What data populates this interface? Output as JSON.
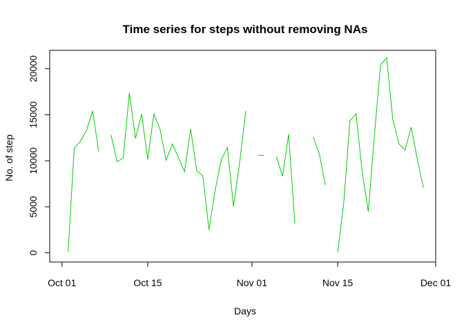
{
  "chart_data": {
    "type": "line",
    "title": "Time series for steps without removing NAs",
    "xlabel": "Days",
    "ylabel": "No. of step",
    "x_ticks": [
      "2012-10-01",
      "2012-10-15",
      "2012-11-01",
      "2012-11-15",
      "2012-12-01"
    ],
    "x_tick_labels": [
      "Oct 01",
      "Oct 15",
      "Nov 01",
      "Nov 15",
      "Dec 01"
    ],
    "y_ticks": [
      0,
      5000,
      10000,
      15000,
      20000
    ],
    "y_tick_labels": [
      "0",
      "5000",
      "10000",
      "15000",
      "20000"
    ],
    "xlim": [
      "2012-09-29",
      "2012-12-01"
    ],
    "ylim": [
      -1000,
      22000
    ],
    "grid": false,
    "legend": "none",
    "series": [
      {
        "color": "#00CD00",
        "x": [
          "2012-10-01",
          "2012-10-02",
          "2012-10-03",
          "2012-10-04",
          "2012-10-05",
          "2012-10-06",
          "2012-10-07",
          "2012-10-08",
          "2012-10-09",
          "2012-10-10",
          "2012-10-11",
          "2012-10-12",
          "2012-10-13",
          "2012-10-14",
          "2012-10-15",
          "2012-10-16",
          "2012-10-17",
          "2012-10-18",
          "2012-10-19",
          "2012-10-20",
          "2012-10-21",
          "2012-10-22",
          "2012-10-23",
          "2012-10-24",
          "2012-10-25",
          "2012-10-26",
          "2012-10-27",
          "2012-10-28",
          "2012-10-29",
          "2012-10-30",
          "2012-10-31",
          "2012-11-01",
          "2012-11-02",
          "2012-11-03",
          "2012-11-04",
          "2012-11-05",
          "2012-11-06",
          "2012-11-07",
          "2012-11-08",
          "2012-11-09",
          "2012-11-10",
          "2012-11-11",
          "2012-11-12",
          "2012-11-13",
          "2012-11-14",
          "2012-11-15",
          "2012-11-16",
          "2012-11-17",
          "2012-11-18",
          "2012-11-19",
          "2012-11-20",
          "2012-11-21",
          "2012-11-22",
          "2012-11-23",
          "2012-11-24",
          "2012-11-25",
          "2012-11-26",
          "2012-11-27",
          "2012-11-28",
          "2012-11-29",
          "2012-11-30"
        ],
        "y": [
          null,
          126,
          11352,
          12116,
          13294,
          15420,
          11015,
          null,
          12811,
          9900,
          10304,
          17382,
          12426,
          15098,
          10139,
          15084,
          13452,
          10056,
          11829,
          10395,
          8821,
          13460,
          8918,
          8355,
          2492,
          6778,
          10119,
          11458,
          5018,
          9819,
          15414,
          null,
          10600,
          10571,
          null,
          10439,
          8334,
          12883,
          3219,
          null,
          null,
          12608,
          10765,
          7336,
          null,
          41,
          5441,
          14339,
          15110,
          8841,
          4472,
          12787,
          20427,
          21194,
          14478,
          11834,
          11162,
          13646,
          10183,
          7047,
          null
        ]
      }
    ]
  }
}
